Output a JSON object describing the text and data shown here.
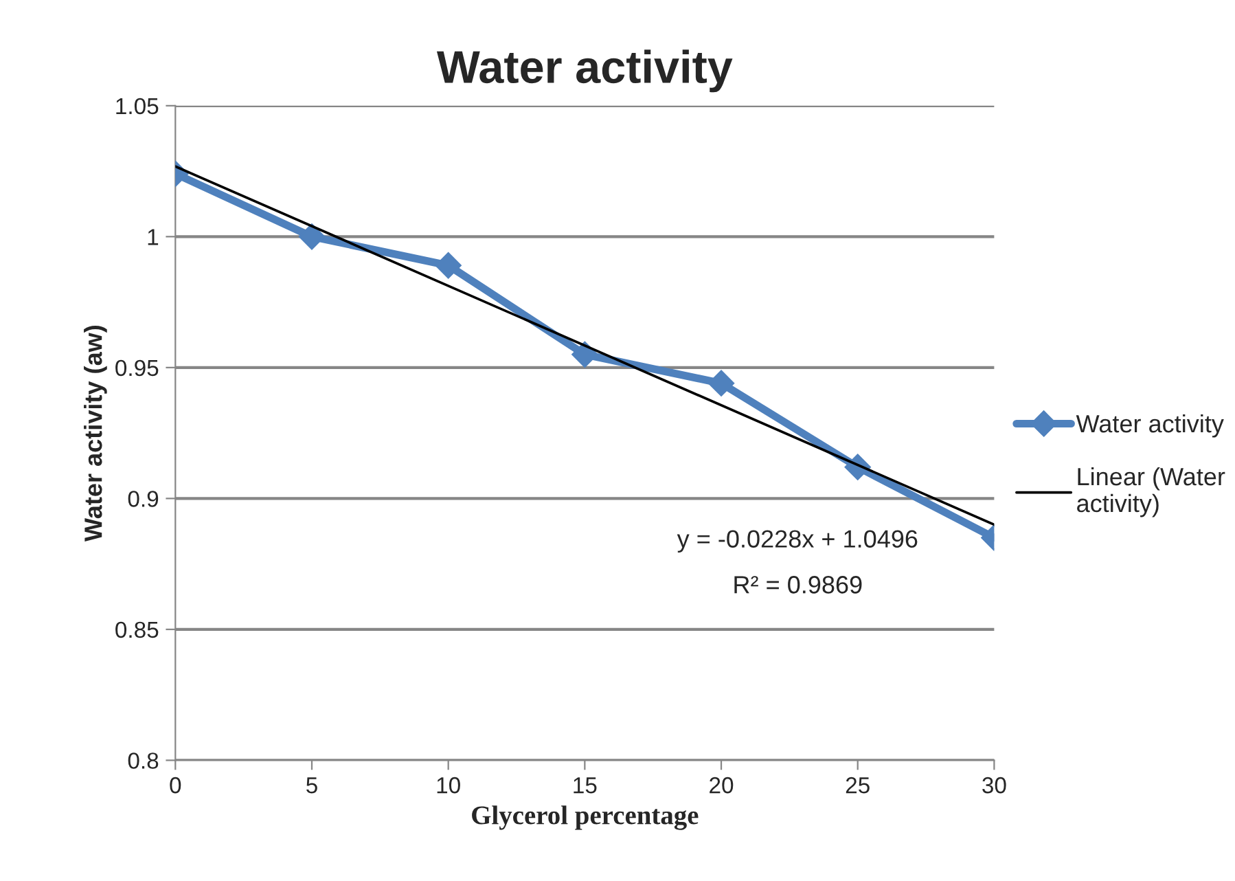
{
  "chart_data": {
    "type": "line",
    "title": "Water activity",
    "xlabel": "Glycerol percentage",
    "ylabel": "Water activity (aw)",
    "x": [
      0,
      5,
      10,
      15,
      20,
      25,
      30
    ],
    "series": [
      {
        "name": "Water activity",
        "color": "#4f81bd",
        "marker": "diamond",
        "values": [
          1.024,
          1.0,
          0.989,
          0.955,
          0.944,
          0.912,
          0.885
        ]
      },
      {
        "name": "Linear (Water activity)",
        "color": "#000000",
        "marker": "none",
        "x": [
          0,
          30
        ],
        "values": [
          1.0268,
          0.89
        ]
      }
    ],
    "annotations": [
      "y = -0.0228x + 1.0496",
      "R² = 0.9869"
    ],
    "xlim": [
      0,
      30
    ],
    "xticks": [
      0,
      5,
      10,
      15,
      20,
      25,
      30
    ],
    "ylim": [
      0.8,
      1.05
    ],
    "yticks": [
      0.8,
      0.85,
      0.9,
      0.95,
      1,
      1.05
    ],
    "grid": "y",
    "legend": "right",
    "line_style": "solid"
  }
}
